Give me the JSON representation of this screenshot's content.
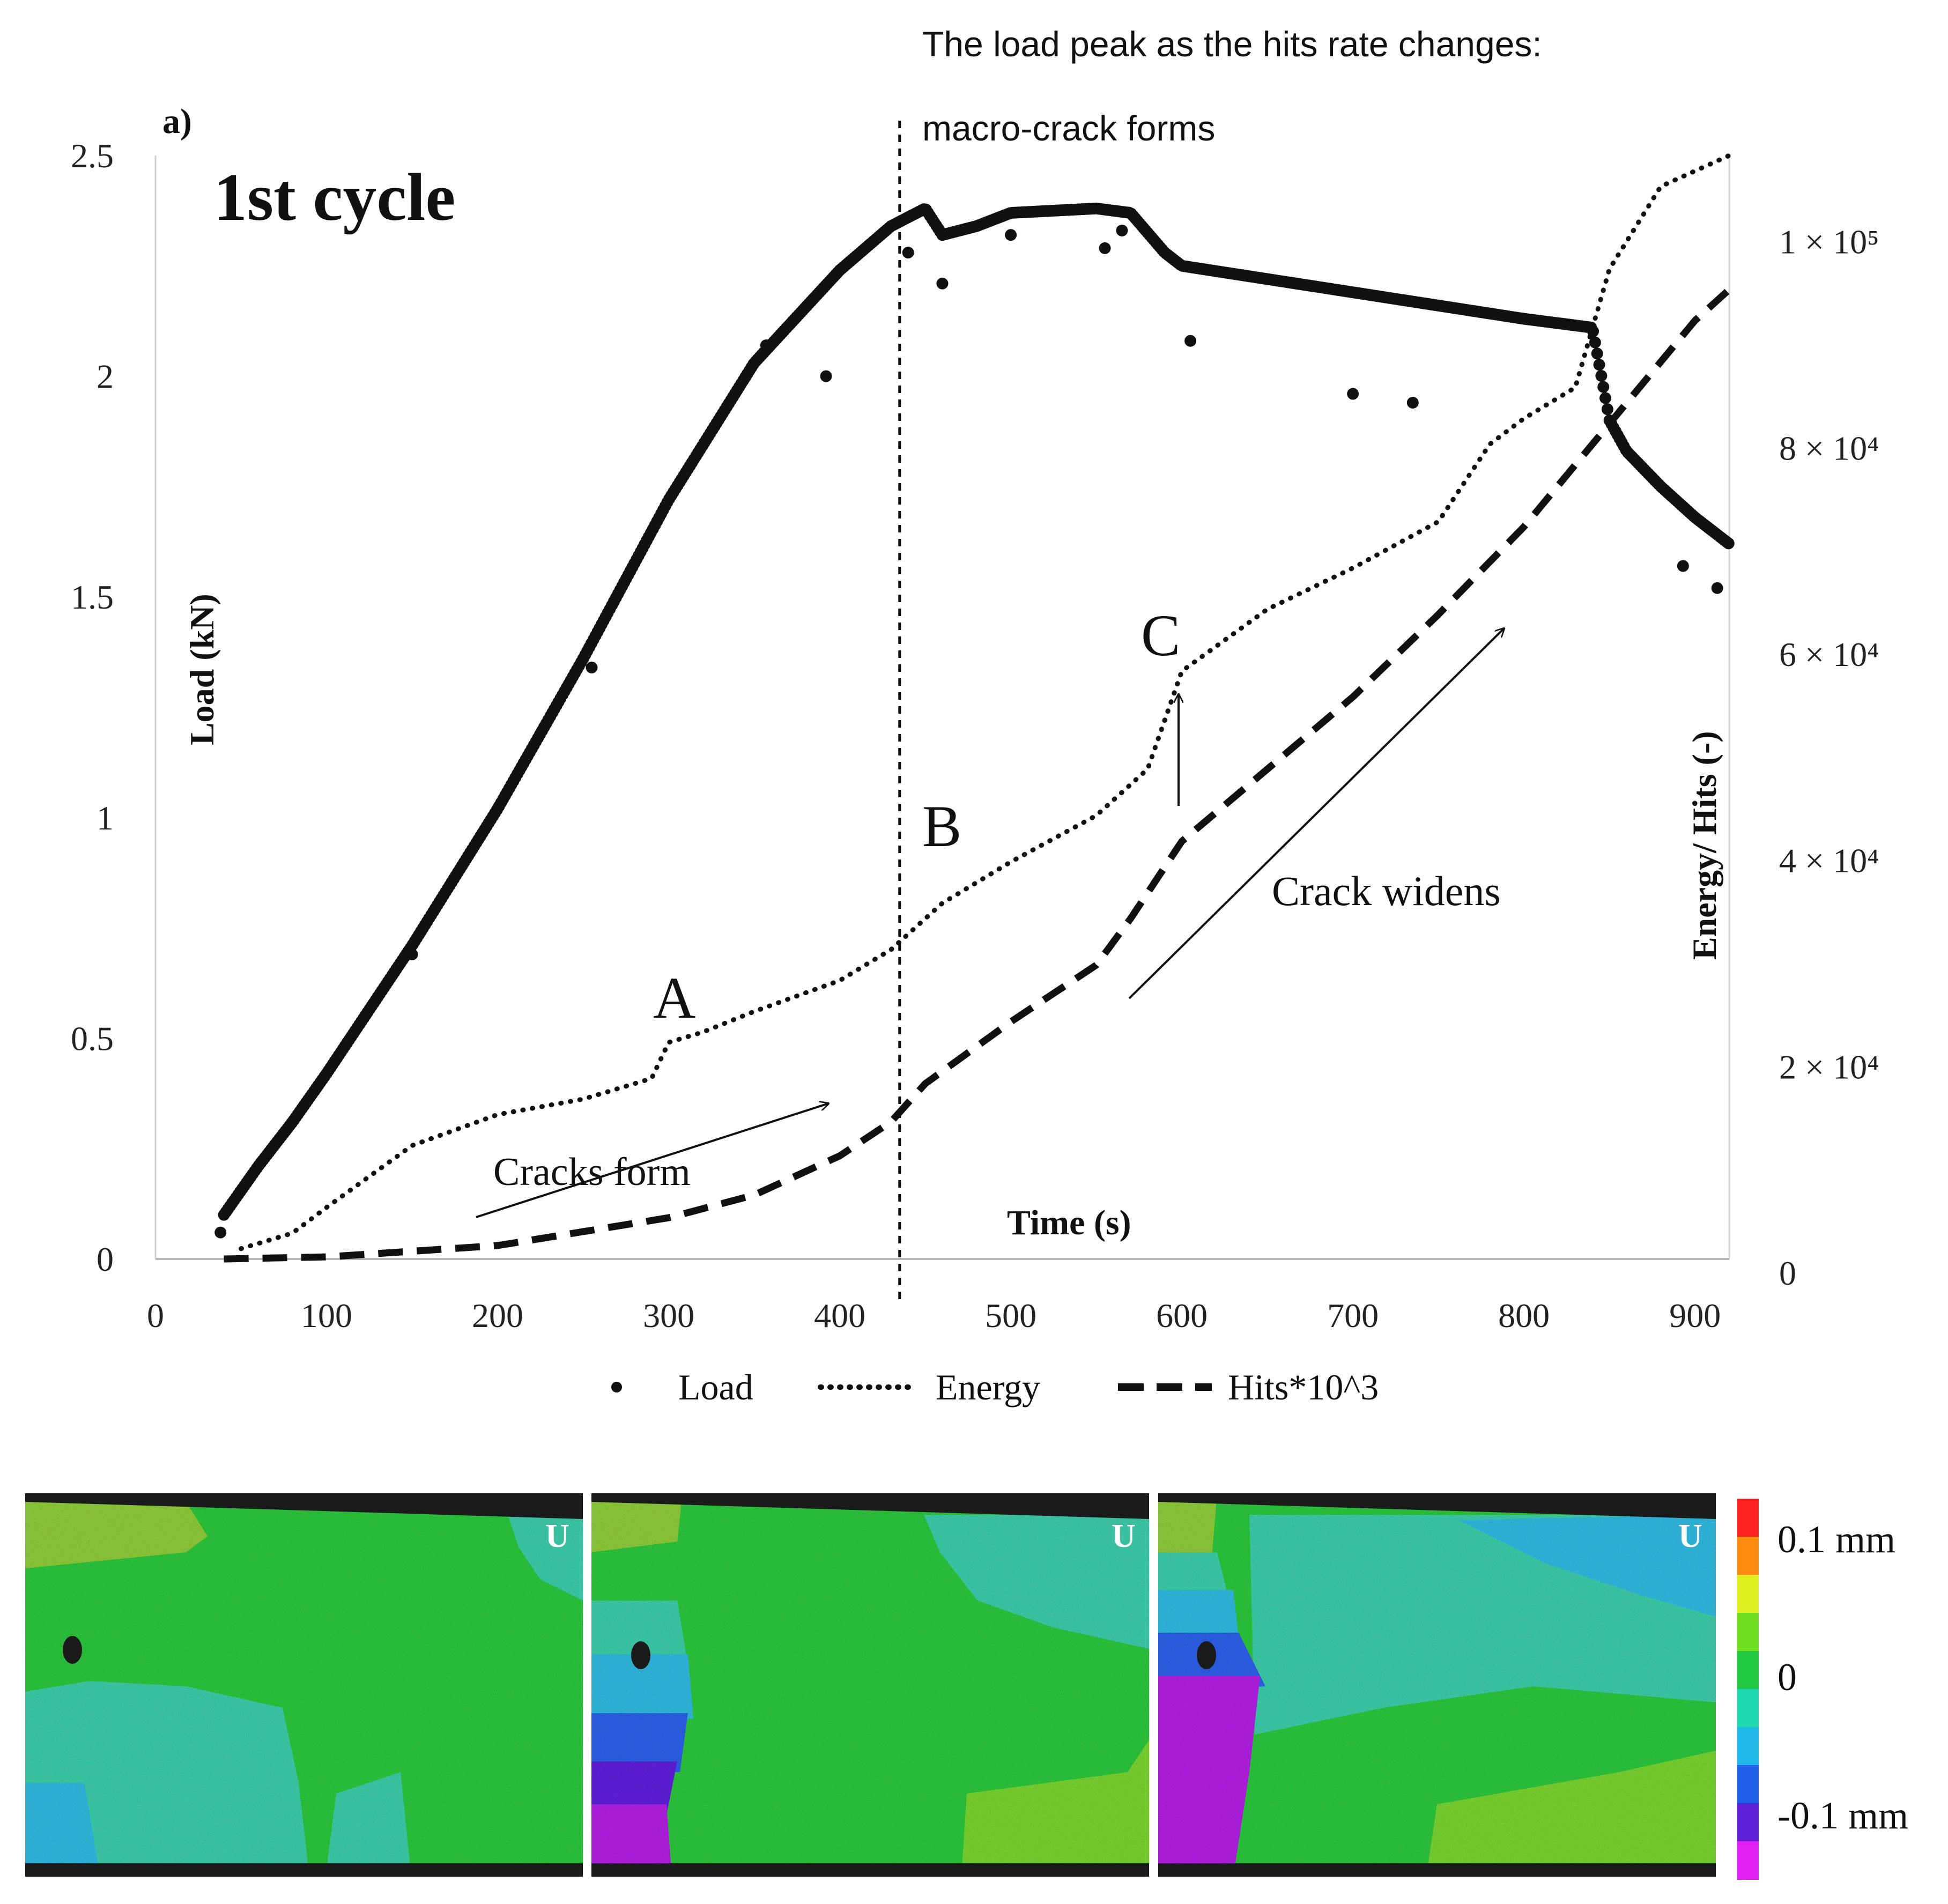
{
  "header_note": "The load peak as the hits rate changes:",
  "panel_label": "a)",
  "cycle_label": "1st cycle",
  "event_label": "macro-crack forms",
  "phase_labels": {
    "A": "A",
    "B": "B",
    "C": "C"
  },
  "annotations": {
    "cracks_form": "Cracks form",
    "crack_widens": "Crack widens"
  },
  "chart_data": {
    "type": "scatter+line",
    "xlabel": "Time (s)",
    "ylabel": "Load (kN)",
    "y2label": "Energy/ Hits (-)",
    "xlim": [
      0,
      920
    ],
    "ylim": [
      0,
      2.5
    ],
    "y2lim": [
      0,
      107000
    ],
    "x_ticks": [
      0,
      100,
      200,
      300,
      400,
      500,
      600,
      700,
      800,
      900
    ],
    "y_ticks": [
      0,
      0.5,
      1,
      1.5,
      2,
      2.5
    ],
    "y_tick_labels": [
      "0",
      "0.5",
      "1",
      "1.5",
      "2",
      "2.5"
    ],
    "y2_ticks": [
      0,
      20000,
      40000,
      60000,
      80000,
      100000
    ],
    "y2_tick_labels": [
      "0",
      "2 × 10⁴",
      "4 × 10⁴",
      "6 × 10⁴",
      "8 × 10⁴",
      "1 × 10⁵"
    ],
    "vertical_marker_x": 435,
    "legend": [
      "Load",
      "Energy",
      "Hits*10^3"
    ],
    "series": [
      {
        "name": "Load",
        "style": "dots",
        "axis": "left",
        "x": [
          40,
          60,
          80,
          100,
          150,
          200,
          250,
          300,
          350,
          400,
          430,
          450,
          460,
          480,
          500,
          550,
          570,
          590,
          600,
          650,
          700,
          750,
          800,
          840,
          850,
          860,
          880,
          900,
          920
        ],
        "y": [
          0.1,
          0.21,
          0.31,
          0.42,
          0.71,
          1.02,
          1.36,
          1.72,
          2.03,
          2.24,
          2.34,
          2.38,
          2.32,
          2.34,
          2.37,
          2.38,
          2.37,
          2.28,
          2.25,
          2.22,
          2.19,
          2.16,
          2.13,
          2.11,
          1.9,
          1.83,
          1.75,
          1.68,
          1.62
        ],
        "outliers_x": [
          38,
          150,
          255,
          357,
          392,
          440,
          460,
          500,
          555,
          565,
          605,
          700,
          735,
          893,
          913
        ],
        "outliers_y": [
          0.06,
          0.69,
          1.34,
          2.07,
          2.0,
          2.28,
          2.21,
          2.32,
          2.29,
          2.33,
          2.08,
          1.96,
          1.94,
          1.57,
          1.52
        ]
      },
      {
        "name": "Energy",
        "style": "dotted",
        "axis": "right",
        "x": [
          50,
          80,
          100,
          150,
          200,
          250,
          290,
          300,
          320,
          350,
          400,
          430,
          460,
          500,
          550,
          580,
          600,
          650,
          700,
          750,
          780,
          800,
          830,
          850,
          880,
          920
        ],
        "y": [
          1000,
          2500,
          5000,
          11000,
          14000,
          15500,
          17500,
          21000,
          22000,
          24000,
          27000,
          30000,
          34500,
          38500,
          43000,
          47500,
          57000,
          63000,
          67000,
          71500,
          79000,
          81500,
          84500,
          96000,
          104000,
          107000
        ]
      },
      {
        "name": "Hits*10^3",
        "style": "dashed",
        "axis": "right",
        "x": [
          40,
          100,
          200,
          300,
          350,
          400,
          430,
          450,
          500,
          550,
          570,
          600,
          650,
          700,
          750,
          800,
          850,
          900,
          920
        ],
        "y": [
          0,
          200,
          1300,
          4000,
          6200,
          10000,
          13300,
          17000,
          23000,
          28500,
          33000,
          40500,
          47500,
          54500,
          62500,
          71000,
          81000,
          91000,
          94000
        ]
      }
    ]
  },
  "dic_maps": {
    "panel_marker": "U",
    "panels": [
      "map-1",
      "map-2",
      "map-3"
    ],
    "colorbar_colors": [
      "#ff2020",
      "#ff8a10",
      "#e0f020",
      "#70e020",
      "#20c840",
      "#20d8b0",
      "#20b8e8",
      "#2060e8",
      "#6020d8",
      "#e020f0"
    ],
    "colorbar_labels": [
      "0.1 mm",
      "0",
      "-0.1 mm"
    ],
    "colors": {
      "green": "#2fc43c",
      "teal": "#3ccaa8",
      "lightblue": "#32b8de",
      "blue": "#2f5fe6",
      "purple": "#8f1fd8",
      "lime": "#78d230",
      "olive": "#8dc93a",
      "dark": "#1a1a1a"
    }
  }
}
